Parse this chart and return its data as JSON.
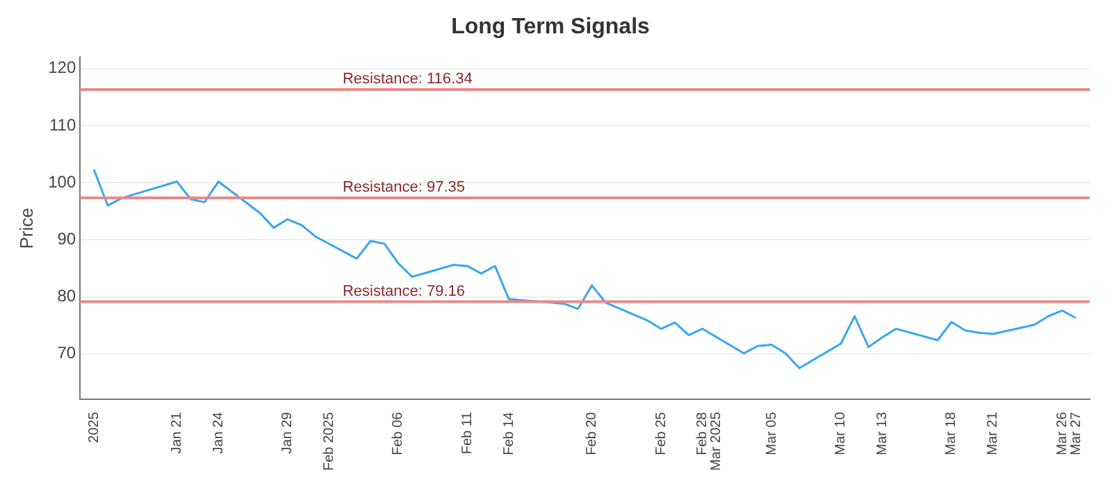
{
  "chart_data": {
    "type": "line",
    "title": "Long Term Signals",
    "ylabel": "Price",
    "x": [
      "2025-01-15",
      "2025-01-16",
      "2025-01-17",
      "2025-01-21",
      "2025-01-22",
      "2025-01-23",
      "2025-01-24",
      "2025-01-27",
      "2025-01-28",
      "2025-01-29",
      "2025-01-30",
      "2025-01-31",
      "2025-02-03",
      "2025-02-04",
      "2025-02-05",
      "2025-02-06",
      "2025-02-07",
      "2025-02-10",
      "2025-02-11",
      "2025-02-12",
      "2025-02-13",
      "2025-02-14",
      "2025-02-18",
      "2025-02-19",
      "2025-02-20",
      "2025-02-21",
      "2025-02-24",
      "2025-02-25",
      "2025-02-26",
      "2025-02-27",
      "2025-02-28",
      "2025-03-03",
      "2025-03-04",
      "2025-03-05",
      "2025-03-06",
      "2025-03-07",
      "2025-03-10",
      "2025-03-11",
      "2025-03-12",
      "2025-03-13",
      "2025-03-14",
      "2025-03-17",
      "2025-03-18",
      "2025-03-19",
      "2025-03-20",
      "2025-03-21",
      "2025-03-24",
      "2025-03-25",
      "2025-03-26",
      "2025-03-27"
    ],
    "series": [
      {
        "color": "#3aa6ee",
        "values": [
          102.3,
          96.0,
          97.3,
          100.2,
          97.1,
          96.6,
          100.2,
          94.7,
          92.1,
          93.6,
          92.6,
          90.6,
          86.7,
          89.8,
          89.3,
          85.9,
          83.5,
          85.6,
          85.4,
          84.1,
          85.4,
          79.6,
          78.8,
          77.9,
          82.0,
          79.0,
          75.9,
          74.4,
          75.5,
          73.3,
          74.4,
          70.1,
          71.4,
          71.6,
          70.1,
          67.5,
          71.8,
          76.6,
          71.2,
          72.9,
          74.4,
          72.4,
          75.6,
          74.1,
          73.7,
          73.5,
          75.1,
          76.6,
          77.6,
          76.3
        ]
      }
    ],
    "xticks": [
      {
        "value": "2025-01-15",
        "label": "2025"
      },
      {
        "value": "2025-01-21",
        "label": "Jan 21"
      },
      {
        "value": "2025-01-24",
        "label": "Jan 24"
      },
      {
        "value": "2025-01-29",
        "label": "Jan 29"
      },
      {
        "value": "2025-02-01",
        "label": "Feb 2025"
      },
      {
        "value": "2025-02-06",
        "label": "Feb 06"
      },
      {
        "value": "2025-02-11",
        "label": "Feb 11"
      },
      {
        "value": "2025-02-14",
        "label": "Feb 14"
      },
      {
        "value": "2025-02-20",
        "label": "Feb 20"
      },
      {
        "value": "2025-02-25",
        "label": "Feb 25"
      },
      {
        "value": "2025-02-28",
        "label": "Feb 28"
      },
      {
        "value": "2025-03-01",
        "label": "Mar 2025"
      },
      {
        "value": "2025-03-05",
        "label": "Mar 05"
      },
      {
        "value": "2025-03-10",
        "label": "Mar 10"
      },
      {
        "value": "2025-03-13",
        "label": "Mar 13"
      },
      {
        "value": "2025-03-18",
        "label": "Mar 18"
      },
      {
        "value": "2025-03-21",
        "label": "Mar 21"
      },
      {
        "value": "2025-03-26",
        "label": "Mar 26"
      },
      {
        "value": "2025-03-27",
        "label": "Mar 27"
      }
    ],
    "xlim": [
      "2025-01-14",
      "2025-03-28"
    ],
    "ylim": [
      62,
      122
    ],
    "yticks": [
      70,
      80,
      90,
      100,
      110,
      120
    ],
    "grid": "y",
    "marker": "none",
    "line_style": "solid",
    "legend": false,
    "ref_lines": [
      {
        "axis": "y",
        "value": 116.34,
        "label": "Resistance: 116.34",
        "color": "#e88a8a"
      },
      {
        "axis": "y",
        "value": 97.35,
        "label": "Resistance: 97.35",
        "color": "#e88a8a"
      },
      {
        "axis": "y",
        "value": 79.16,
        "label": "Resistance: 79.16",
        "color": "#e88a8a"
      }
    ]
  }
}
